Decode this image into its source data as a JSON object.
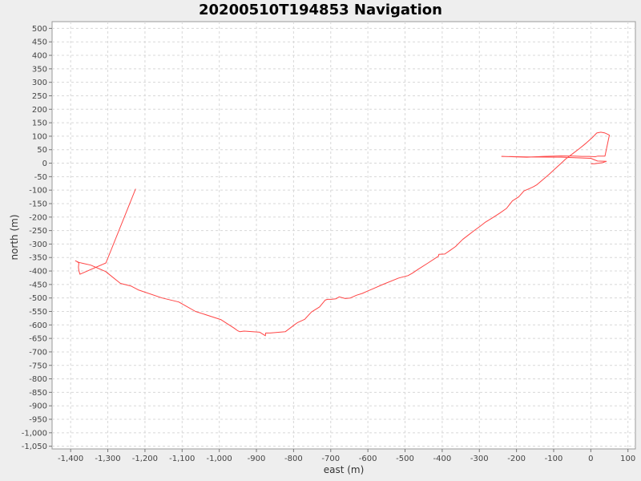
{
  "chart_data": {
    "type": "line",
    "title": "20200510T194853 Navigation",
    "xlabel": "east (m)",
    "ylabel": "north (m)",
    "xlim": [
      -1450,
      120
    ],
    "ylim": [
      -1060,
      525
    ],
    "grid": true,
    "legend": "none",
    "colors": {
      "line": "#ff4444",
      "plot_bg": "#ffffff",
      "grid": "#d8d8d8",
      "page_bg": "#eeeeee"
    },
    "x_ticks": [
      -1400,
      -1300,
      -1200,
      -1100,
      -1000,
      -900,
      -800,
      -700,
      -600,
      -500,
      -400,
      -300,
      -200,
      -100,
      0,
      100
    ],
    "x_tick_labels": [
      "-1,400",
      "-1,300",
      "-1,200",
      "-1,100",
      "-1,000",
      "-900",
      "-800",
      "-700",
      "-600",
      "-500",
      "-400",
      "-300",
      "-200",
      "-100",
      "0",
      "100"
    ],
    "y_ticks": [
      500,
      450,
      400,
      350,
      300,
      250,
      200,
      150,
      100,
      50,
      0,
      -50,
      -100,
      -150,
      -200,
      -250,
      -300,
      -350,
      -400,
      -450,
      -500,
      -550,
      -600,
      -650,
      -700,
      -750,
      -800,
      -850,
      -900,
      -950,
      -1000,
      -1050
    ],
    "y_tick_labels": [
      "500",
      "450",
      "400",
      "350",
      "300",
      "250",
      "200",
      "150",
      "100",
      "50",
      "0",
      "-50",
      "-100",
      "-150",
      "-200",
      "-250",
      "-300",
      "-350",
      "-400",
      "-450",
      "-500",
      "-550",
      "-600",
      "-650",
      "-700",
      "-750",
      "-800",
      "-850",
      "-900",
      "-950",
      "-1,000",
      "-1,050"
    ],
    "series": [
      {
        "x": [
          -1225,
          -1305,
          -1375,
          -1378,
          -1379,
          -1378,
          -1383,
          -1387,
          -1378,
          -1366,
          -1346,
          -1306,
          -1266,
          -1237,
          -1218,
          -1154,
          -1109,
          -1064,
          -996,
          -960,
          -951,
          -945,
          -933,
          -891,
          -876,
          -875,
          -863,
          -822,
          -798,
          -790,
          -770,
          -752,
          -730,
          -715,
          -709,
          -699,
          -686,
          -677,
          -661,
          -647,
          -631,
          -615,
          -602,
          -585,
          -558,
          -517,
          -492,
          -480,
          -464,
          -438,
          -410,
          -409,
          -393,
          -377,
          -364,
          -345,
          -331,
          -314,
          -299,
          -283,
          -265,
          -245,
          -227,
          -211,
          -194,
          -180,
          -168,
          -155,
          -145,
          -129,
          -113,
          -97,
          -82,
          -68,
          -49,
          -30,
          -12,
          4,
          16,
          27,
          38,
          44,
          50,
          38,
          18,
          12,
          -5,
          -24,
          -42,
          -80,
          -128,
          -172,
          -213,
          -240,
          -172,
          -80,
          0,
          18,
          42,
          32,
          10,
          0
        ],
        "y": [
          -95,
          -370,
          -412,
          -398,
          -386,
          -370,
          -365,
          -362,
          -368,
          -372,
          -378,
          -402,
          -446,
          -456,
          -470,
          -500,
          -515,
          -550,
          -580,
          -612,
          -621,
          -625,
          -623,
          -627,
          -640,
          -630,
          -630,
          -625,
          -600,
          -592,
          -579,
          -552,
          -533,
          -508,
          -505,
          -505,
          -503,
          -496,
          -502,
          -500,
          -490,
          -483,
          -475,
          -465,
          -449,
          -426,
          -417,
          -408,
          -393,
          -370,
          -345,
          -338,
          -337,
          -322,
          -309,
          -283,
          -268,
          -250,
          -235,
          -218,
          -203,
          -185,
          -168,
          -140,
          -125,
          -103,
          -96,
          -88,
          -80,
          -61,
          -42,
          -22,
          -3,
          15,
          35,
          55,
          75,
          95,
          112,
          115,
          112,
          108,
          104,
          26,
          26,
          24,
          25,
          25,
          26,
          27,
          25,
          22,
          24,
          25,
          23,
          22,
          18,
          8,
          7,
          2,
          -2,
          -2
        ]
      }
    ]
  }
}
